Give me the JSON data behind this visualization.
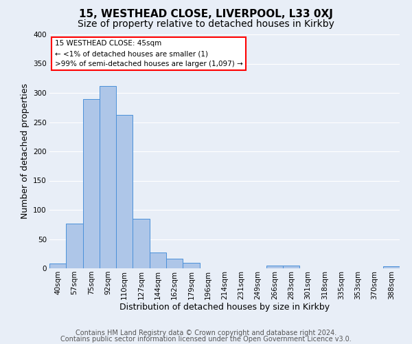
{
  "title": "15, WESTHEAD CLOSE, LIVERPOOL, L33 0XJ",
  "subtitle": "Size of property relative to detached houses in Kirkby",
  "xlabel": "Distribution of detached houses by size in Kirkby",
  "ylabel": "Number of detached properties",
  "bin_labels": [
    "40sqm",
    "57sqm",
    "75sqm",
    "92sqm",
    "110sqm",
    "127sqm",
    "144sqm",
    "162sqm",
    "179sqm",
    "196sqm",
    "214sqm",
    "231sqm",
    "249sqm",
    "266sqm",
    "283sqm",
    "301sqm",
    "318sqm",
    "335sqm",
    "353sqm",
    "370sqm",
    "388sqm"
  ],
  "bar_values": [
    8,
    77,
    290,
    312,
    262,
    85,
    27,
    16,
    9,
    0,
    0,
    0,
    0,
    5,
    5,
    0,
    0,
    0,
    0,
    0,
    4
  ],
  "bar_color": "#aec6e8",
  "bar_edge_color": "#4a90d9",
  "ylim": [
    0,
    400
  ],
  "yticks": [
    0,
    50,
    100,
    150,
    200,
    250,
    300,
    350,
    400
  ],
  "annotation_box_text": "15 WESTHEAD CLOSE: 45sqm\n← <1% of detached houses are smaller (1)\n>99% of semi-detached houses are larger (1,097) →",
  "footer_line1": "Contains HM Land Registry data © Crown copyright and database right 2024.",
  "footer_line2": "Contains public sector information licensed under the Open Government Licence v3.0.",
  "bg_color": "#e8eef7",
  "grid_color": "#ffffff",
  "title_fontsize": 11,
  "subtitle_fontsize": 10,
  "axis_label_fontsize": 9,
  "tick_fontsize": 7.5,
  "footer_fontsize": 7
}
